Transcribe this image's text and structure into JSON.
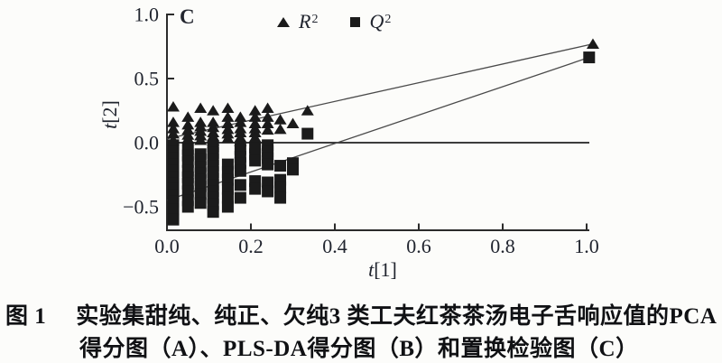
{
  "figure": {
    "panel_label": "C",
    "ink_color": "#1b1b1b",
    "axis_color": "#2b2b2b",
    "trend_line_color": "#4a4a4a",
    "text_color": "#20242e",
    "background": "#fcfcfa"
  },
  "chart_data": {
    "type": "scatter",
    "title": "",
    "xlabel": "t[1]",
    "ylabel": "t[2]",
    "xlabel_parts": {
      "var": "t",
      "idx": "[1]"
    },
    "ylabel_parts": {
      "var": "t",
      "idx": "[2]"
    },
    "xlim": [
      0.0,
      1.05
    ],
    "ylim": [
      -0.68,
      1.0
    ],
    "x_ticks": [
      0.0,
      0.2,
      0.4,
      0.6,
      0.8,
      1.0
    ],
    "x_tick_labels": [
      "0.0",
      "0.2",
      "0.4",
      "0.6",
      "0.8",
      "1.0"
    ],
    "y_ticks": [
      1.0,
      0.5,
      0.0,
      -0.5
    ],
    "y_tick_labels": [
      "1.0",
      "0.5",
      "0.0",
      "−0.5"
    ],
    "grid": false,
    "zero_line_y": 0.0,
    "legend_position": "top",
    "legend": [
      {
        "base": "R",
        "sup": "2",
        "marker": "triangle"
      },
      {
        "base": "Q",
        "sup": "2",
        "marker": "square"
      }
    ],
    "series": [
      {
        "name": "R2",
        "marker": "triangle",
        "trend_line": {
          "x1": 0.0,
          "y1": 0.03,
          "x2": 1.015,
          "y2": 0.77
        },
        "points": [
          [
            0.015,
            0.28
          ],
          [
            0.015,
            0.16
          ],
          [
            0.015,
            0.11
          ],
          [
            0.015,
            0.07
          ],
          [
            0.015,
            0.02
          ],
          [
            0.05,
            0.2
          ],
          [
            0.05,
            0.14
          ],
          [
            0.05,
            0.1
          ],
          [
            0.05,
            0.06
          ],
          [
            0.05,
            0.03
          ],
          [
            0.08,
            0.27
          ],
          [
            0.08,
            0.16
          ],
          [
            0.08,
            0.125
          ],
          [
            0.08,
            0.09
          ],
          [
            0.08,
            0.055
          ],
          [
            0.08,
            0.02
          ],
          [
            0.11,
            0.25
          ],
          [
            0.11,
            0.16
          ],
          [
            0.11,
            0.12
          ],
          [
            0.11,
            0.08
          ],
          [
            0.11,
            0.05
          ],
          [
            0.11,
            0.015
          ],
          [
            0.145,
            0.27
          ],
          [
            0.145,
            0.2
          ],
          [
            0.145,
            0.15
          ],
          [
            0.145,
            0.105
          ],
          [
            0.145,
            0.07
          ],
          [
            0.145,
            0.035
          ],
          [
            0.175,
            0.2
          ],
          [
            0.175,
            0.16
          ],
          [
            0.175,
            0.11
          ],
          [
            0.175,
            0.08
          ],
          [
            0.175,
            0.04
          ],
          [
            0.175,
            0.01
          ],
          [
            0.21,
            0.25
          ],
          [
            0.21,
            0.2
          ],
          [
            0.21,
            0.15
          ],
          [
            0.21,
            0.11
          ],
          [
            0.21,
            0.08
          ],
          [
            0.21,
            0.04
          ],
          [
            0.24,
            0.27
          ],
          [
            0.24,
            0.2
          ],
          [
            0.24,
            0.15
          ],
          [
            0.24,
            0.1
          ],
          [
            0.27,
            0.18
          ],
          [
            0.27,
            0.105
          ],
          [
            0.3,
            0.15
          ],
          [
            0.335,
            0.25
          ],
          [
            1.015,
            0.77
          ]
        ]
      },
      {
        "name": "Q2",
        "marker": "square",
        "trend_line": {
          "x1": 0.0,
          "y1": -0.45,
          "x2": 1.006,
          "y2": 0.665
        },
        "points": [
          [
            0.015,
            -0.02
          ],
          [
            0.015,
            -0.07
          ],
          [
            0.015,
            -0.12
          ],
          [
            0.015,
            -0.17
          ],
          [
            0.015,
            -0.22
          ],
          [
            0.015,
            -0.27
          ],
          [
            0.015,
            -0.32
          ],
          [
            0.015,
            -0.36
          ],
          [
            0.015,
            -0.41
          ],
          [
            0.015,
            -0.46
          ],
          [
            0.015,
            -0.52
          ],
          [
            0.015,
            -0.6
          ],
          [
            0.05,
            -0.05
          ],
          [
            0.05,
            -0.1
          ],
          [
            0.05,
            -0.15
          ],
          [
            0.05,
            -0.22
          ],
          [
            0.05,
            -0.27
          ],
          [
            0.05,
            -0.32
          ],
          [
            0.05,
            -0.38
          ],
          [
            0.05,
            -0.45
          ],
          [
            0.05,
            -0.5
          ],
          [
            0.08,
            -0.09
          ],
          [
            0.08,
            -0.13
          ],
          [
            0.08,
            -0.19
          ],
          [
            0.08,
            -0.24
          ],
          [
            0.08,
            -0.29
          ],
          [
            0.08,
            -0.34
          ],
          [
            0.08,
            -0.4
          ],
          [
            0.08,
            -0.47
          ],
          [
            0.11,
            -0.03
          ],
          [
            0.11,
            -0.08
          ],
          [
            0.11,
            -0.13
          ],
          [
            0.11,
            -0.18
          ],
          [
            0.11,
            -0.23
          ],
          [
            0.11,
            -0.28
          ],
          [
            0.11,
            -0.33
          ],
          [
            0.11,
            -0.38
          ],
          [
            0.11,
            -0.43
          ],
          [
            0.11,
            -0.48
          ],
          [
            0.11,
            -0.54
          ],
          [
            0.145,
            -0.17
          ],
          [
            0.145,
            -0.23
          ],
          [
            0.145,
            -0.29
          ],
          [
            0.145,
            -0.36
          ],
          [
            0.145,
            -0.43
          ],
          [
            0.145,
            -0.5
          ],
          [
            0.175,
            -0.05
          ],
          [
            0.175,
            -0.11
          ],
          [
            0.175,
            -0.16
          ],
          [
            0.175,
            -0.22
          ],
          [
            0.175,
            -0.33
          ],
          [
            0.175,
            -0.43
          ],
          [
            0.21,
            -0.04
          ],
          [
            0.21,
            -0.09
          ],
          [
            0.21,
            -0.14
          ],
          [
            0.21,
            -0.3
          ],
          [
            0.21,
            -0.36
          ],
          [
            0.24,
            -0.02
          ],
          [
            0.24,
            -0.07
          ],
          [
            0.24,
            -0.12
          ],
          [
            0.24,
            -0.17
          ],
          [
            0.24,
            -0.31
          ],
          [
            0.24,
            -0.38
          ],
          [
            0.27,
            -0.18
          ],
          [
            0.27,
            -0.29
          ],
          [
            0.27,
            -0.35
          ],
          [
            0.27,
            -0.43
          ],
          [
            0.3,
            -0.16
          ],
          [
            0.3,
            -0.21
          ],
          [
            0.335,
            0.07
          ],
          [
            1.006,
            0.665
          ]
        ]
      }
    ]
  },
  "caption": {
    "label": "图 1",
    "line1": "实验集甜纯、纯正、欠纯3 类工夫红茶茶汤电子舌响应值的PCA",
    "line2": "得分图（A）、PLS-DA得分图（B）和置换检验图（C）"
  }
}
